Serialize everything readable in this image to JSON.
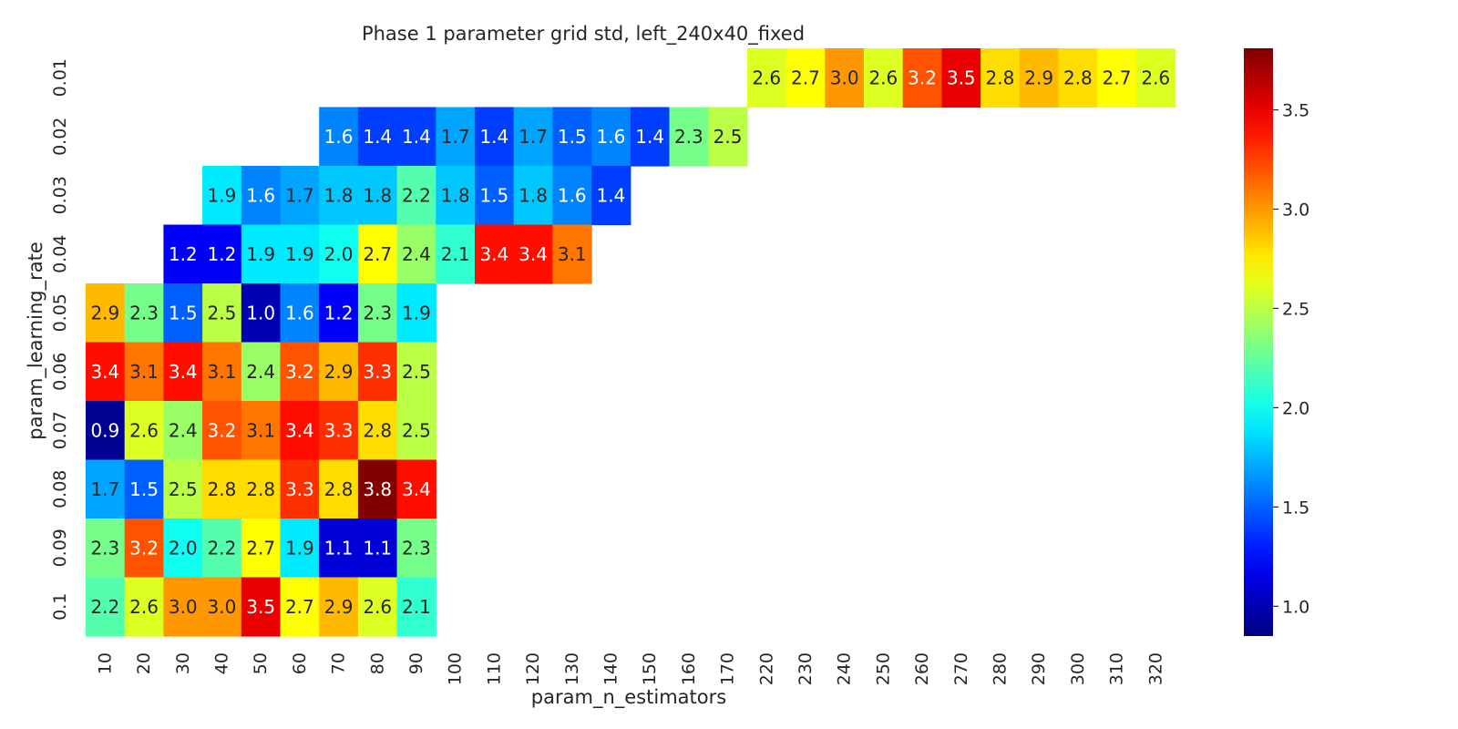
{
  "chart_data": {
    "type": "heatmap",
    "title": "Phase 1 parameter grid std, left_240x40_fixed",
    "xlabel": "param_n_estimators",
    "ylabel": "param_learning_rate",
    "x_categories": [
      "10",
      "20",
      "30",
      "40",
      "50",
      "60",
      "70",
      "80",
      "90",
      "100",
      "110",
      "120",
      "130",
      "140",
      "150",
      "160",
      "170",
      "220",
      "230",
      "240",
      "250",
      "260",
      "270",
      "280",
      "290",
      "300",
      "310",
      "320"
    ],
    "y_categories": [
      "0.01",
      "0.02",
      "0.03",
      "0.04",
      "0.05",
      "0.06",
      "0.07",
      "0.08",
      "0.09",
      "0.1"
    ],
    "colormap": "jet",
    "vmin": 0.85,
    "vmax": 3.81,
    "colorbar_ticks": [
      "1.0",
      "1.5",
      "2.0",
      "2.5",
      "3.0",
      "3.5"
    ],
    "values": [
      [
        null,
        null,
        null,
        null,
        null,
        null,
        null,
        null,
        null,
        null,
        null,
        null,
        null,
        null,
        null,
        null,
        null,
        2.6,
        2.7,
        3.0,
        2.6,
        3.2,
        3.5,
        2.8,
        2.9,
        2.8,
        2.7,
        2.6
      ],
      [
        null,
        null,
        null,
        null,
        null,
        null,
        1.6,
        1.4,
        1.4,
        1.7,
        1.4,
        1.7,
        1.5,
        1.6,
        1.4,
        2.3,
        2.5,
        null,
        null,
        null,
        null,
        null,
        null,
        null,
        null,
        null,
        null,
        null
      ],
      [
        null,
        null,
        null,
        1.9,
        1.6,
        1.7,
        1.8,
        1.8,
        2.2,
        1.8,
        1.5,
        1.8,
        1.6,
        1.4,
        null,
        null,
        null,
        null,
        null,
        null,
        null,
        null,
        null,
        null,
        null,
        null,
        null,
        null
      ],
      [
        null,
        null,
        1.2,
        1.2,
        1.9,
        1.9,
        2.0,
        2.7,
        2.4,
        2.1,
        3.4,
        3.4,
        3.1,
        null,
        null,
        null,
        null,
        null,
        null,
        null,
        null,
        null,
        null,
        null,
        null,
        null,
        null,
        null
      ],
      [
        2.9,
        2.3,
        1.5,
        2.5,
        1.0,
        1.6,
        1.2,
        2.3,
        1.9,
        null,
        null,
        null,
        null,
        null,
        null,
        null,
        null,
        null,
        null,
        null,
        null,
        null,
        null,
        null,
        null,
        null,
        null,
        null
      ],
      [
        3.4,
        3.1,
        3.4,
        3.1,
        2.4,
        3.2,
        2.9,
        3.3,
        2.5,
        null,
        null,
        null,
        null,
        null,
        null,
        null,
        null,
        null,
        null,
        null,
        null,
        null,
        null,
        null,
        null,
        null,
        null,
        null
      ],
      [
        0.9,
        2.6,
        2.4,
        3.2,
        3.1,
        3.4,
        3.3,
        2.8,
        2.5,
        null,
        null,
        null,
        null,
        null,
        null,
        null,
        null,
        null,
        null,
        null,
        null,
        null,
        null,
        null,
        null,
        null,
        null,
        null
      ],
      [
        1.7,
        1.5,
        2.5,
        2.8,
        2.8,
        3.3,
        2.8,
        3.8,
        3.4,
        null,
        null,
        null,
        null,
        null,
        null,
        null,
        null,
        null,
        null,
        null,
        null,
        null,
        null,
        null,
        null,
        null,
        null,
        null
      ],
      [
        2.3,
        3.2,
        2.0,
        2.2,
        2.7,
        1.9,
        1.1,
        1.1,
        2.3,
        null,
        null,
        null,
        null,
        null,
        null,
        null,
        null,
        null,
        null,
        null,
        null,
        null,
        null,
        null,
        null,
        null,
        null,
        null
      ],
      [
        2.2,
        2.6,
        3.0,
        3.0,
        3.5,
        2.7,
        2.9,
        2.6,
        2.1,
        null,
        null,
        null,
        null,
        null,
        null,
        null,
        null,
        null,
        null,
        null,
        null,
        null,
        null,
        null,
        null,
        null,
        null,
        null
      ]
    ]
  }
}
